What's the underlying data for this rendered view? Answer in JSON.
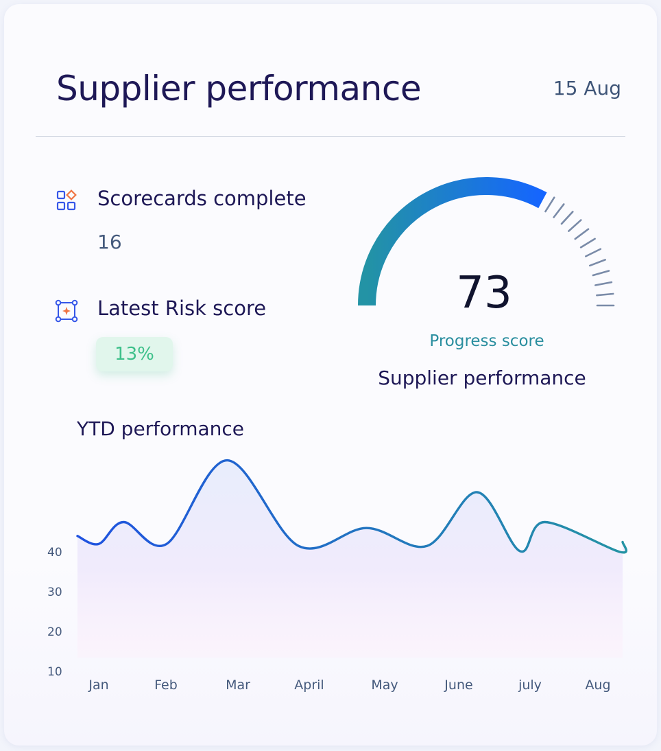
{
  "header": {
    "title": "Supplier performance",
    "date": "15 Aug"
  },
  "stats": {
    "scorecards": {
      "label": "Scorecards complete",
      "value": "16",
      "icon": "grid-shapes-icon"
    },
    "risk": {
      "label": "Latest Risk score",
      "value": "13%",
      "icon": "bounding-box-sparkle-icon"
    }
  },
  "gauge": {
    "value": "73",
    "caption": "Progress score",
    "subtitle": "Supplier performance",
    "colors": {
      "start": "#2393a5",
      "end": "#1565ff",
      "ticks": "#7a8ba8"
    }
  },
  "chart": {
    "title": "YTD performance"
  },
  "chart_data": {
    "type": "area",
    "title": "YTD performance",
    "xlabel": "",
    "ylabel": "",
    "categories": [
      "Jan",
      "Feb",
      "Mar",
      "April",
      "May",
      "June",
      "july",
      "Aug"
    ],
    "y_ticks": [
      "40",
      "30",
      "20",
      "10"
    ],
    "ylim": [
      10,
      70
    ],
    "series": [
      {
        "x": [
          0,
          0.35,
          0.95,
          1.8,
          2.8,
          3.75,
          4.6,
          5.3,
          5.9,
          6.25,
          7.3
        ],
        "values": [
          42,
          47.5,
          42,
          63,
          41.5,
          46,
          41.5,
          55,
          40.2,
          47.5,
          40
        ]
      }
    ],
    "colors": {
      "line_start": "#1f52e0",
      "line_end": "#2493a4",
      "fill_top": "#e6ecfc",
      "fill_bottom": "#fdf0fa"
    },
    "grid": false
  }
}
